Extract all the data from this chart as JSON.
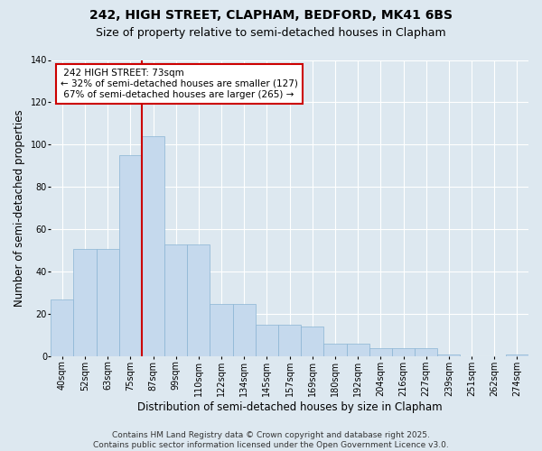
{
  "title_line1": "242, HIGH STREET, CLAPHAM, BEDFORD, MK41 6BS",
  "title_line2": "Size of property relative to semi-detached houses in Clapham",
  "xlabel": "Distribution of semi-detached houses by size in Clapham",
  "ylabel": "Number of semi-detached properties",
  "categories": [
    "40sqm",
    "52sqm",
    "63sqm",
    "75sqm",
    "87sqm",
    "99sqm",
    "110sqm",
    "122sqm",
    "134sqm",
    "145sqm",
    "157sqm",
    "169sqm",
    "180sqm",
    "192sqm",
    "204sqm",
    "216sqm",
    "227sqm",
    "239sqm",
    "251sqm",
    "262sqm",
    "274sqm"
  ],
  "values": [
    27,
    51,
    51,
    95,
    104,
    53,
    53,
    25,
    25,
    15,
    15,
    14,
    6,
    6,
    4,
    4,
    4,
    1,
    0,
    0,
    1
  ],
  "bar_color": "#c5d9ed",
  "bar_edge_color": "#8ab4d4",
  "subject_bin_index": 3,
  "subject_label": "242 HIGH STREET: 73sqm",
  "pct_smaller": 32,
  "n_smaller": 127,
  "pct_larger": 67,
  "n_larger": 265,
  "annotation_box_color": "#ffffff",
  "annotation_box_edge_color": "#cc0000",
  "vline_color": "#cc0000",
  "background_color": "#dde8f0",
  "ylim": [
    0,
    140
  ],
  "yticks": [
    0,
    20,
    40,
    60,
    80,
    100,
    120,
    140
  ],
  "footer_line1": "Contains HM Land Registry data © Crown copyright and database right 2025.",
  "footer_line2": "Contains public sector information licensed under the Open Government Licence v3.0.",
  "title_fontsize": 10,
  "subtitle_fontsize": 9,
  "axis_label_fontsize": 8.5,
  "tick_fontsize": 7,
  "annotation_fontsize": 7.5,
  "footer_fontsize": 6.5
}
